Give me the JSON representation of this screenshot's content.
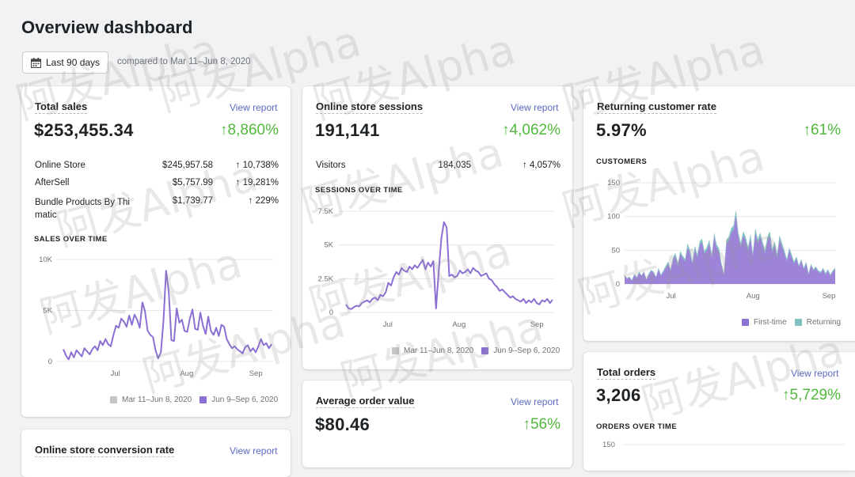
{
  "page": {
    "title": "Overview dashboard",
    "date_range_label": "Last 90 days",
    "compare_text": "compared to Mar 11–Jun 8, 2020"
  },
  "colors": {
    "accent": "#5c6ac4",
    "current_series": "#8c6fd2",
    "previous_series": "#c4c4c4",
    "positive": "#50b83c",
    "returning": "#7ec1be"
  },
  "total_sales": {
    "title": "Total sales",
    "view_report": "View report",
    "value": "$253,455.34",
    "change": "↑8,860%",
    "breakdown": [
      {
        "name": "Online Store",
        "value": "$245,957.58",
        "change": "↑ 10,738%"
      },
      {
        "name": "AfterSell",
        "value": "$5,757.99",
        "change": "↑ 19,281%"
      },
      {
        "name": "Bundle Products By Thi matic",
        "value": "$1,739.77",
        "change": "↑ 229%"
      }
    ],
    "chart_label": "SALES OVER TIME",
    "legend_prev": "Mar 11–Jun 8, 2020",
    "legend_curr": "Jun 9–Sep 6, 2020"
  },
  "sessions": {
    "title": "Online store sessions",
    "view_report": "View report",
    "value": "191,141",
    "change": "↑4,062%",
    "visitors_label": "Visitors",
    "visitors_value": "184,035",
    "visitors_change": "↑ 4,057%",
    "chart_label": "SESSIONS OVER TIME",
    "legend_prev": "Mar 11–Jun 8, 2020",
    "legend_curr": "Jun 9–Sep 6, 2020"
  },
  "returning": {
    "title": "Returning customer rate",
    "value": "5.97%",
    "change": "↑61%",
    "chart_label": "CUSTOMERS",
    "legend_first": "First-time",
    "legend_returning": "Returning"
  },
  "avg_order": {
    "title": "Average order value",
    "view_report": "View report",
    "value": "$80.46",
    "change": "↑56%"
  },
  "total_orders": {
    "title": "Total orders",
    "view_report": "View report",
    "value": "3,206",
    "change": "↑5,729%",
    "chart_label": "ORDERS OVER TIME",
    "y_top": "150"
  },
  "conversion": {
    "title": "Online store conversion rate",
    "view_report": "View report"
  },
  "watermark_text": "阿发Alpha",
  "chart_data": [
    {
      "type": "line",
      "title": "SALES OVER TIME",
      "x_ticks": [
        "Jul",
        "Aug",
        "Sep"
      ],
      "y_ticks": [
        "0",
        "5K",
        "10K"
      ],
      "ylim": [
        0,
        10000
      ],
      "series": [
        {
          "name": "Jun 9–Sep 6, 2020",
          "values": [
            1200,
            600,
            200,
            900,
            400,
            1100,
            800,
            500,
            1300,
            1000,
            700,
            1200,
            1500,
            1100,
            2000,
            1600,
            2200,
            1700,
            1500,
            2600,
            3500,
            3300,
            4200,
            3900,
            3400,
            4500,
            3600,
            4600,
            4100,
            3300,
            5800,
            4900,
            3000,
            2600,
            2400,
            1100,
            300,
            900,
            4000,
            8900,
            6800,
            2100,
            2000,
            5200,
            3800,
            4100,
            3000,
            2900,
            4200,
            5100,
            3200,
            3100,
            4800,
            3500,
            2700,
            4400,
            3000,
            2600,
            3300,
            2500,
            3600,
            3400,
            2200,
            1700,
            1300,
            1500,
            1200,
            1000,
            800,
            1400,
            1600,
            1000,
            1300,
            900,
            1500,
            2200,
            1600,
            1800,
            1300,
            1700
          ]
        },
        {
          "name": "Mar 11–Jun 8, 2020",
          "values": []
        }
      ]
    },
    {
      "type": "line",
      "title": "SESSIONS OVER TIME",
      "x_ticks": [
        "Jul",
        "Aug",
        "Sep"
      ],
      "y_ticks": [
        "0",
        "2.5K",
        "5K",
        "7.5K"
      ],
      "ylim": [
        0,
        7500
      ],
      "series": [
        {
          "name": "Jun 9–Sep 6, 2020",
          "values": [
            600,
            300,
            250,
            400,
            500,
            450,
            700,
            800,
            900,
            750,
            1000,
            1100,
            900,
            1300,
            1200,
            1500,
            2200,
            2000,
            2600,
            3000,
            2800,
            3300,
            3100,
            3000,
            3400,
            3200,
            3500,
            3300,
            3600,
            3900,
            3200,
            3700,
            3400,
            3800,
            300,
            3000,
            5500,
            6700,
            6300,
            2700,
            2800,
            2600,
            2700,
            3100,
            2900,
            3000,
            3200,
            2900,
            3300,
            3100,
            3000,
            2700,
            2800,
            2900,
            2500,
            2400,
            2100,
            1900,
            1600,
            1700,
            1500,
            1300,
            1100,
            1200,
            1000,
            900,
            800,
            1000,
            700,
            900,
            750,
            1000,
            700,
            600,
            900,
            800,
            1000,
            700,
            950
          ]
        },
        {
          "name": "Mar 11–Jun 8, 2020",
          "values": []
        }
      ]
    },
    {
      "type": "area",
      "title": "CUSTOMERS",
      "x_ticks": [
        "Jul",
        "Aug",
        "Sep"
      ],
      "y_ticks": [
        "0",
        "50",
        "100",
        "150"
      ],
      "ylim": [
        0,
        150
      ],
      "series": [
        {
          "name": "First-time",
          "values": [
            12,
            8,
            10,
            5,
            14,
            9,
            16,
            12,
            18,
            6,
            14,
            20,
            16,
            10,
            22,
            12,
            18,
            24,
            30,
            20,
            36,
            42,
            28,
            45,
            38,
            34,
            55,
            46,
            30,
            52,
            40,
            58,
            62,
            45,
            50,
            60,
            40,
            70,
            54,
            48,
            28,
            14,
            60,
            64,
            76,
            80,
            102,
            70,
            56,
            72,
            64,
            50,
            68,
            42,
            76,
            60,
            70,
            58,
            46,
            64,
            72,
            48,
            58,
            40,
            66,
            56,
            46,
            34,
            50,
            40,
            30,
            38,
            26,
            34,
            22,
            30,
            14,
            28,
            20,
            24,
            18,
            16,
            22,
            14,
            20,
            12,
            18,
            22
          ]
        },
        {
          "name": "Returning",
          "values": [
            1,
            1,
            1,
            1,
            1,
            1,
            2,
            1,
            1,
            1,
            2,
            1,
            2,
            1,
            2,
            2,
            2,
            3,
            3,
            2,
            3,
            4,
            3,
            4,
            4,
            3,
            5,
            4,
            3,
            5,
            4,
            5,
            5,
            4,
            5,
            6,
            4,
            6,
            5,
            5,
            3,
            2,
            5,
            6,
            6,
            7,
            8,
            6,
            5,
            6,
            6,
            5,
            6,
            4,
            7,
            6,
            6,
            5,
            4,
            6,
            6,
            4,
            5,
            4,
            6,
            5,
            4,
            3,
            4,
            4,
            3,
            3,
            2,
            3,
            2,
            3,
            2,
            2,
            2,
            2,
            2,
            2,
            2,
            2,
            2,
            2,
            2,
            2
          ]
        }
      ]
    }
  ]
}
